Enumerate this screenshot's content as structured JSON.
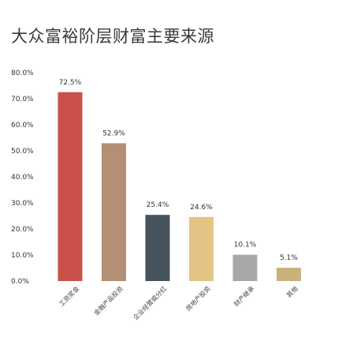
{
  "chart_data": {
    "type": "bar",
    "title": "大众富裕阶层财富主要来源",
    "categories": [
      "工资奖金",
      "金融产品投资",
      "企业经营或分红",
      "房地产投资",
      "财产继承",
      "其他"
    ],
    "values": [
      72.5,
      52.9,
      25.4,
      24.6,
      10.1,
      5.1
    ],
    "data_labels": [
      "72.5%",
      "52.9%",
      "25.4%",
      "24.6%",
      "10.1%",
      "5.1%"
    ],
    "colors": [
      "#c9514a",
      "#b48f74",
      "#45545c",
      "#e4c484",
      "#a8a8a8",
      "#c8b27a"
    ],
    "ylim": [
      0,
      80
    ],
    "yticks": [
      0,
      10,
      20,
      30,
      40,
      50,
      60,
      70,
      80
    ],
    "ytick_labels": [
      "0.0%",
      "10.0%",
      "20.0%",
      "30.0%",
      "40.0%",
      "50.0%",
      "60.0%",
      "70.0%",
      "80.0%"
    ],
    "xlabel": "",
    "ylabel": "",
    "grid": false,
    "legend": "none"
  }
}
